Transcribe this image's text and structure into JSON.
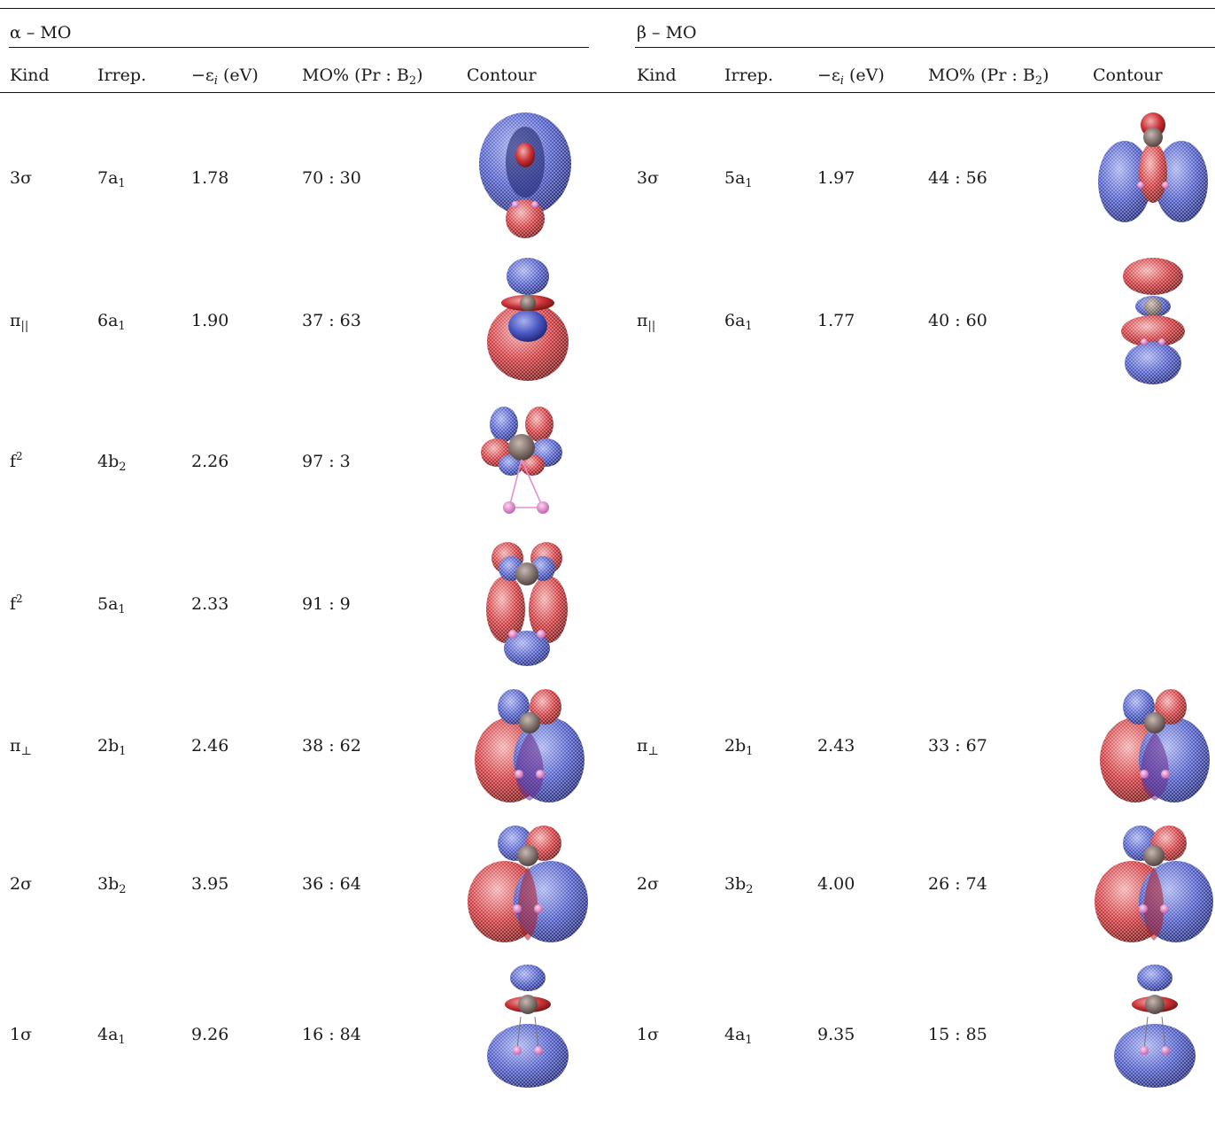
{
  "sections": [
    {
      "title": "α – MO",
      "headers": {
        "kind": "Kind",
        "irrep": "Irrep.",
        "energy_prefix": "−ε",
        "energy_sub": "i",
        "energy_unit": " (eV)",
        "mo_prefix": "MO% (Pr : B",
        "mo_sub": "2",
        "mo_suffix": ")",
        "contour": "Contour"
      },
      "rows": [
        {
          "kind_main": "3σ",
          "kind_sub": "",
          "kind_sup": "",
          "irrep_main": "7a",
          "irrep_sub": "1",
          "energy": "1.78",
          "ratio": "70 : 30",
          "contour_icon": "sigma-orbital-3-icon"
        },
        {
          "kind_main": "π",
          "kind_sub": "||",
          "kind_sup": "",
          "irrep_main": "6a",
          "irrep_sub": "1",
          "energy": "1.90",
          "ratio": "37 : 63",
          "contour_icon": "pi-parallel-orbital-icon"
        },
        {
          "kind_main": "f",
          "kind_sub": "",
          "kind_sup": "2",
          "irrep_main": "4b",
          "irrep_sub": "2",
          "energy": "2.26",
          "ratio": "97 : 3",
          "contour_icon": "f-orbital-b2-icon"
        },
        {
          "kind_main": "f",
          "kind_sub": "",
          "kind_sup": "2",
          "irrep_main": "5a",
          "irrep_sub": "1",
          "energy": "2.33",
          "ratio": "91 : 9",
          "contour_icon": "f-orbital-a1-icon"
        },
        {
          "kind_main": "π",
          "kind_sub": "⊥",
          "kind_sup": "",
          "irrep_main": "2b",
          "irrep_sub": "1",
          "energy": "2.46",
          "ratio": "38 : 62",
          "contour_icon": "pi-perp-orbital-icon"
        },
        {
          "kind_main": "2σ",
          "kind_sub": "",
          "kind_sup": "",
          "irrep_main": "3b",
          "irrep_sub": "2",
          "energy": "3.95",
          "ratio": "36 : 64",
          "contour_icon": "sigma-orbital-2-icon"
        },
        {
          "kind_main": "1σ",
          "kind_sub": "",
          "kind_sup": "",
          "irrep_main": "4a",
          "irrep_sub": "1",
          "energy": "9.26",
          "ratio": "16 : 84",
          "contour_icon": "sigma-orbital-1-icon"
        }
      ]
    },
    {
      "title": "β – MO",
      "headers": {
        "kind": "Kind",
        "irrep": "Irrep.",
        "energy_prefix": "−ε",
        "energy_sub": "i",
        "energy_unit": " (eV)",
        "mo_prefix": "MO% (Pr : B",
        "mo_sub": "2",
        "mo_suffix": ")",
        "contour": "Contour"
      },
      "rows": [
        {
          "kind_main": "3σ",
          "kind_sub": "",
          "kind_sup": "",
          "irrep_main": "5a",
          "irrep_sub": "1",
          "energy": "1.97",
          "ratio": "44 : 56",
          "contour_icon": "sigma-orbital-3-beta-icon"
        },
        {
          "kind_main": "π",
          "kind_sub": "||",
          "kind_sup": "",
          "irrep_main": "6a",
          "irrep_sub": "1",
          "energy": "1.77",
          "ratio": "40 : 60",
          "contour_icon": "pi-parallel-orbital-beta-icon"
        },
        {
          "kind_main": "π",
          "kind_sub": "⊥",
          "kind_sup": "",
          "irrep_main": "2b",
          "irrep_sub": "1",
          "energy": "2.43",
          "ratio": "33 : 67",
          "contour_icon": "pi-perp-orbital-icon"
        },
        {
          "kind_main": "2σ",
          "kind_sub": "",
          "kind_sup": "",
          "irrep_main": "3b",
          "irrep_sub": "2",
          "energy": "4.00",
          "ratio": "26 : 74",
          "contour_icon": "sigma-orbital-2-icon"
        },
        {
          "kind_main": "1σ",
          "kind_sub": "",
          "kind_sup": "",
          "irrep_main": "4a",
          "irrep_sub": "1",
          "energy": "9.35",
          "ratio": "15 : 85",
          "contour_icon": "sigma-orbital-1-icon"
        }
      ]
    }
  ],
  "colors": {
    "positive_lobe": "#3d4db5",
    "negative_lobe": "#c2262b",
    "pr_atom": "#6b5a55",
    "b_atom": "#e58fcf",
    "rule": "#111111"
  }
}
